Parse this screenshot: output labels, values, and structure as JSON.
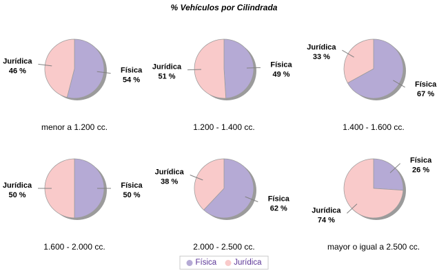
{
  "chart_data": {
    "type": "pie",
    "title": "% Vehículos por Cilindrada",
    "series": [
      "Física",
      "Jurídica"
    ],
    "series_colors": [
      "#b5aad5",
      "#f9caca"
    ],
    "label_format": "{value} %",
    "legend_position": "bottom-center",
    "pies": [
      {
        "category": "menor a 1.200 cc.",
        "values": [
          54,
          46
        ]
      },
      {
        "category": "1.200 - 1.400 cc.",
        "values": [
          49,
          51
        ]
      },
      {
        "category": "1.400 - 1.600 cc.",
        "values": [
          67,
          33
        ]
      },
      {
        "category": "1.600 - 2.000 cc.",
        "values": [
          50,
          50
        ]
      },
      {
        "category": "2.000 - 2.500 cc.",
        "values": [
          62,
          38
        ]
      },
      {
        "category": "mayor o igual a 2.500 cc.",
        "values": [
          26,
          74
        ]
      }
    ]
  },
  "style": {
    "background": "#ffffff",
    "shadow_color": "#9b9b9b",
    "slice_stroke": "#9a9a9a",
    "leader_line_color": "#808080",
    "slice_label_color": "#000000",
    "category_label_color": "#000000",
    "title_color": "#000000",
    "legend_text_color": "#5b3597",
    "legend_border_color": "#cccccc"
  }
}
